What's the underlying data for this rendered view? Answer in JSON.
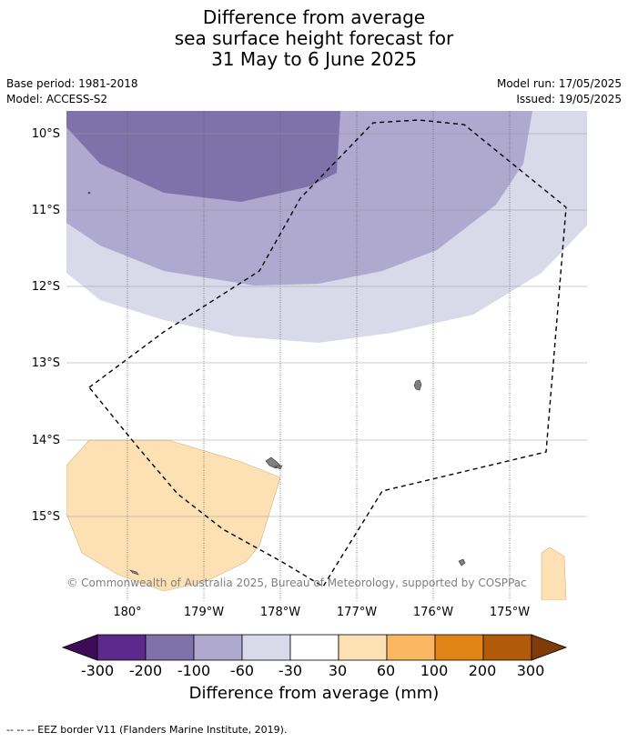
{
  "header": {
    "title_lines": [
      "Difference from average",
      "sea surface height forecast for",
      "31 May to 6 June 2025"
    ],
    "base_period": "Base period: 1981-2018",
    "model": "Model: ACCESS-S2",
    "model_run": "Model run: 17/05/2025",
    "issued": "Issued: 19/05/2025"
  },
  "map": {
    "lat_labels": [
      "10°S",
      "11°S",
      "12°S",
      "13°S",
      "14°S",
      "15°S"
    ],
    "lon_labels": [
      "180°",
      "179°W",
      "178°W",
      "177°W",
      "176°W",
      "175°W"
    ],
    "copyright": "© Commonwealth of Australia 2025, Bureau of Meteorology, supported by COSPPac"
  },
  "colorbar": {
    "title": "Difference from average (mm)",
    "ticks": [
      "-300",
      "-200",
      "-100",
      "-60",
      "-30",
      "30",
      "60",
      "100",
      "200",
      "300"
    ],
    "colors": [
      "#3f0a57",
      "#5b2a8c",
      "#7f71a9",
      "#afa8cf",
      "#d8d9e9",
      "#ffffff",
      "#fde0b4",
      "#fbb761",
      "#e28517",
      "#b15a09",
      "#7f3b08"
    ]
  },
  "footer": {
    "legend_text": "--  --  -- EEZ border V11 (Flanders Marine Institute, 2019)."
  }
}
